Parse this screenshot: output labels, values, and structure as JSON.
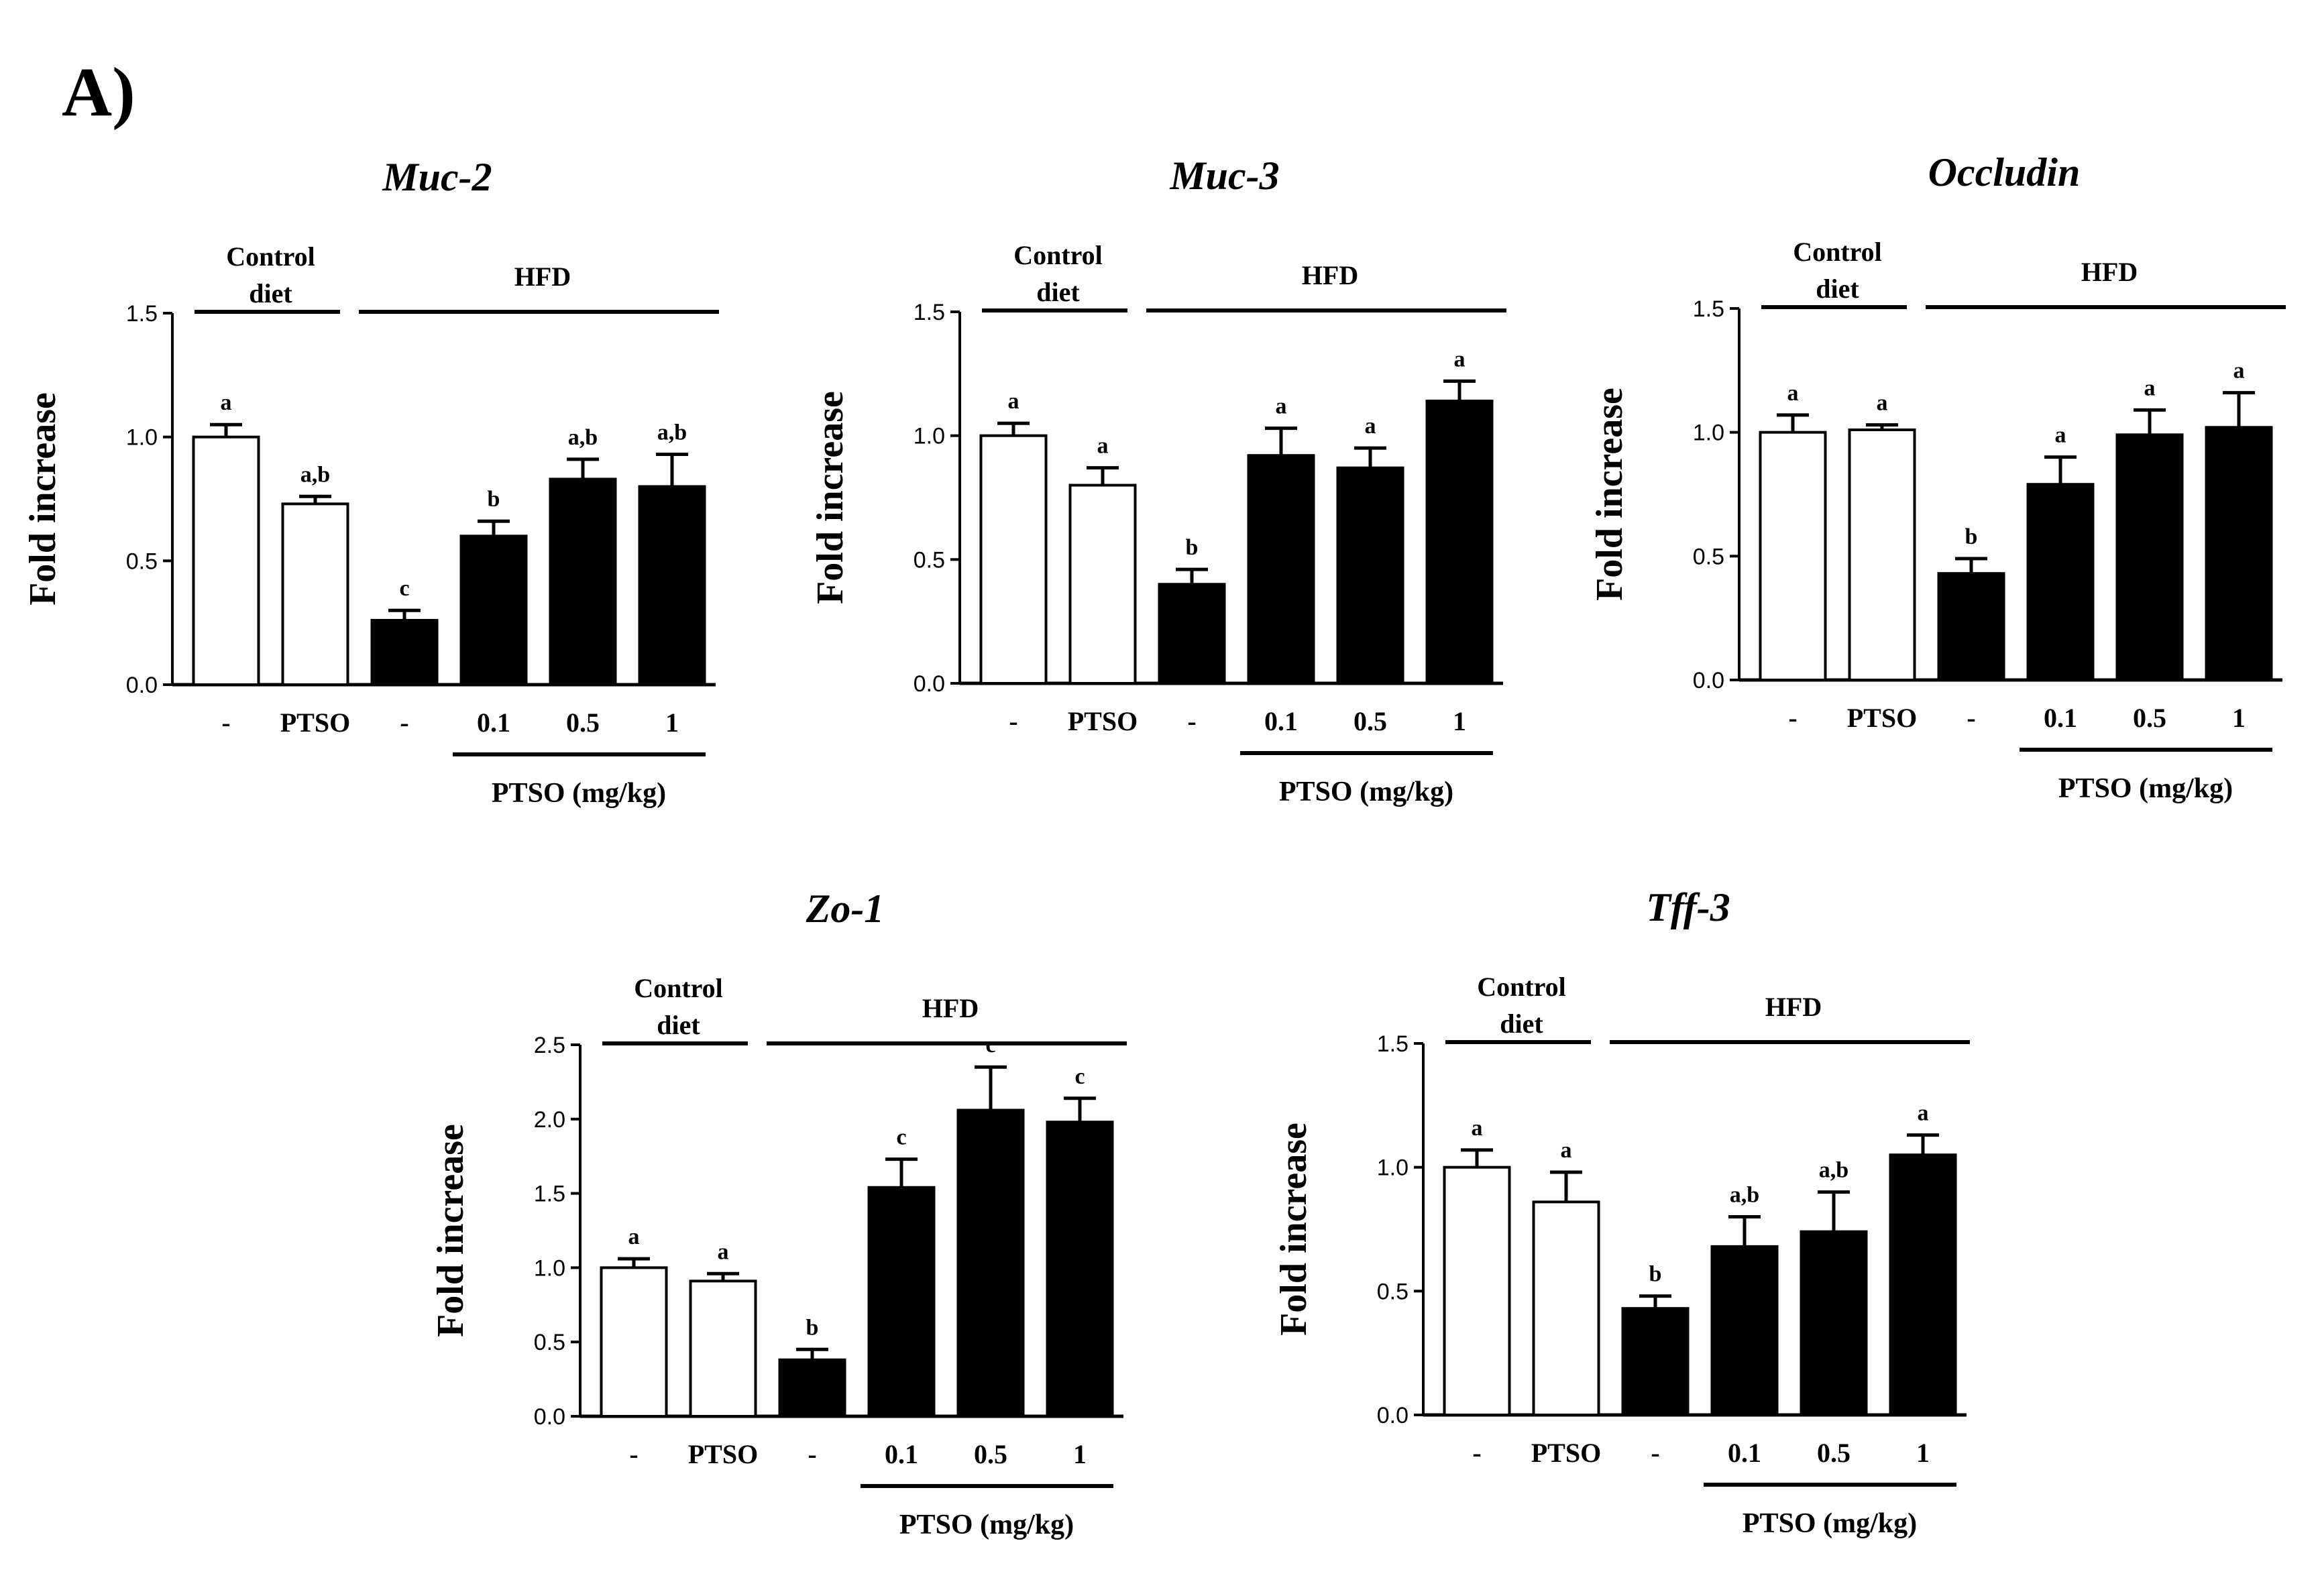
{
  "figure_label": "A)",
  "chart_data": [
    {
      "type": "bar",
      "title": "Muc-2",
      "ylabel": "Fold increase",
      "ylim": [
        0,
        1.5
      ],
      "yticks": [
        "0.0",
        "0.5",
        "1.0",
        "1.5"
      ],
      "categories": [
        "-",
        "PTSO",
        "-",
        "0.1",
        "0.5",
        "1"
      ],
      "values": [
        1.0,
        0.73,
        0.26,
        0.6,
        0.83,
        0.8
      ],
      "errors": [
        0.05,
        0.03,
        0.04,
        0.06,
        0.08,
        0.13
      ],
      "significance": [
        "a",
        "a,b",
        "c",
        "b",
        "a,b",
        "a,b"
      ],
      "group_labels": {
        "control": [
          "Control",
          "diet"
        ],
        "hfd": "HFD"
      },
      "dose_label": "PTSO (mg/kg)",
      "colors": [
        "#ffffff",
        "#ffffff",
        "#000000",
        "#000000",
        "#000000",
        "#000000"
      ]
    },
    {
      "type": "bar",
      "title": "Muc-3",
      "ylabel": "Fold increase",
      "ylim": [
        0,
        1.5
      ],
      "yticks": [
        "0.0",
        "0.5",
        "1.0",
        "1.5"
      ],
      "categories": [
        "-",
        "PTSO",
        "-",
        "0.1",
        "0.5",
        "1"
      ],
      "values": [
        1.0,
        0.8,
        0.4,
        0.92,
        0.87,
        1.14
      ],
      "errors": [
        0.05,
        0.07,
        0.06,
        0.11,
        0.08,
        0.08
      ],
      "significance": [
        "a",
        "a",
        "b",
        "a",
        "a",
        "a"
      ],
      "group_labels": {
        "control": [
          "Control",
          "diet"
        ],
        "hfd": "HFD"
      },
      "dose_label": "PTSO (mg/kg)",
      "colors": [
        "#ffffff",
        "#ffffff",
        "#000000",
        "#000000",
        "#000000",
        "#000000"
      ]
    },
    {
      "type": "bar",
      "title": "Occludin",
      "ylabel": "Fold increase",
      "ylim": [
        0,
        1.5
      ],
      "yticks": [
        "0.0",
        "0.5",
        "1.0",
        "1.5"
      ],
      "categories": [
        "-",
        "PTSO",
        "-",
        "0.1",
        "0.5",
        "1"
      ],
      "values": [
        1.0,
        1.01,
        0.43,
        0.79,
        0.99,
        1.02
      ],
      "errors": [
        0.07,
        0.02,
        0.06,
        0.11,
        0.1,
        0.14
      ],
      "significance": [
        "a",
        "a",
        "b",
        "a",
        "a",
        "a"
      ],
      "group_labels": {
        "control": [
          "Control",
          "diet"
        ],
        "hfd": "HFD"
      },
      "dose_label": "PTSO (mg/kg)",
      "colors": [
        "#ffffff",
        "#ffffff",
        "#000000",
        "#000000",
        "#000000",
        "#000000"
      ]
    },
    {
      "type": "bar",
      "title": "Zo-1",
      "ylabel": "Fold increase",
      "ylim": [
        0,
        2.5
      ],
      "yticks": [
        "0.0",
        "0.5",
        "1.0",
        "1.5",
        "2.0",
        "2.5"
      ],
      "categories": [
        "-",
        "PTSO",
        "-",
        "0.1",
        "0.5",
        "1"
      ],
      "values": [
        1.0,
        0.91,
        0.38,
        1.54,
        2.06,
        1.98
      ],
      "errors": [
        0.06,
        0.05,
        0.07,
        0.19,
        0.29,
        0.16
      ],
      "significance": [
        "a",
        "a",
        "b",
        "c",
        "c",
        "c"
      ],
      "group_labels": {
        "control": [
          "Control",
          "diet"
        ],
        "hfd": "HFD"
      },
      "dose_label": "PTSO (mg/kg)",
      "colors": [
        "#ffffff",
        "#ffffff",
        "#000000",
        "#000000",
        "#000000",
        "#000000"
      ]
    },
    {
      "type": "bar",
      "title": "Tff-3",
      "ylabel": "Fold increase",
      "ylim": [
        0,
        1.5
      ],
      "yticks": [
        "0.0",
        "0.5",
        "1.0",
        "1.5"
      ],
      "categories": [
        "-",
        "PTSO",
        "-",
        "0.1",
        "0.5",
        "1"
      ],
      "values": [
        1.0,
        0.86,
        0.43,
        0.68,
        0.74,
        1.05
      ],
      "errors": [
        0.07,
        0.12,
        0.05,
        0.12,
        0.16,
        0.08
      ],
      "significance": [
        "a",
        "a",
        "b",
        "a,b",
        "a,b",
        "a"
      ],
      "group_labels": {
        "control": [
          "Control",
          "diet"
        ],
        "hfd": "HFD"
      },
      "dose_label": "PTSO (mg/kg)",
      "colors": [
        "#ffffff",
        "#ffffff",
        "#000000",
        "#000000",
        "#000000",
        "#000000"
      ]
    }
  ]
}
